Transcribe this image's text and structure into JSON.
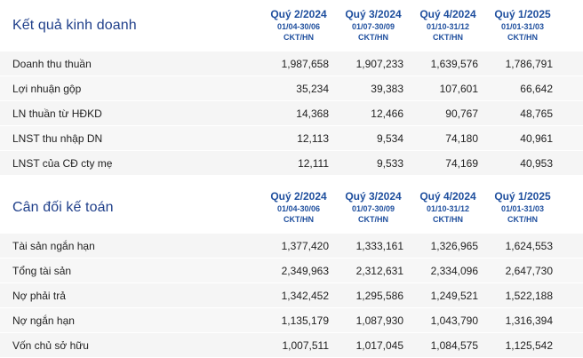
{
  "sections": [
    {
      "title": "Kết quả kinh doanh",
      "columns": [
        {
          "quarter": "Quý 2/2024",
          "range": "01/04-30/06",
          "unit": "CKT/HN"
        },
        {
          "quarter": "Quý 3/2024",
          "range": "01/07-30/09",
          "unit": "CKT/HN"
        },
        {
          "quarter": "Quý 4/2024",
          "range": "01/10-31/12",
          "unit": "CKT/HN"
        },
        {
          "quarter": "Quý 1/2025",
          "range": "01/01-31/03",
          "unit": "CKT/HN"
        }
      ],
      "rows": [
        {
          "label": "Doanh thu thuần",
          "values": [
            "1,987,658",
            "1,907,233",
            "1,639,576",
            "1,786,791"
          ]
        },
        {
          "label": "Lợi nhuận gộp",
          "values": [
            "35,234",
            "39,383",
            "107,601",
            "66,642"
          ]
        },
        {
          "label": "LN thuần từ HĐKD",
          "values": [
            "14,368",
            "12,466",
            "90,767",
            "48,765"
          ]
        },
        {
          "label": "LNST thu nhập DN",
          "values": [
            "12,113",
            "9,534",
            "74,180",
            "40,961"
          ]
        },
        {
          "label": "LNST của CĐ cty mẹ",
          "values": [
            "12,111",
            "9,533",
            "74,169",
            "40,953"
          ]
        }
      ]
    },
    {
      "title": "Cân đối kế toán",
      "columns": [
        {
          "quarter": "Quý 2/2024",
          "range": "01/04-30/06",
          "unit": "CKT/HN"
        },
        {
          "quarter": "Quý 3/2024",
          "range": "01/07-30/09",
          "unit": "CKT/HN"
        },
        {
          "quarter": "Quý 4/2024",
          "range": "01/10-31/12",
          "unit": "CKT/HN"
        },
        {
          "quarter": "Quý 1/2025",
          "range": "01/01-31/03",
          "unit": "CKT/HN"
        }
      ],
      "rows": [
        {
          "label": "Tài sản ngắn hạn",
          "values": [
            "1,377,420",
            "1,333,161",
            "1,326,965",
            "1,624,553"
          ]
        },
        {
          "label": "Tổng tài sản",
          "values": [
            "2,349,963",
            "2,312,631",
            "2,334,096",
            "2,647,730"
          ]
        },
        {
          "label": "Nợ phải trả",
          "values": [
            "1,342,452",
            "1,295,586",
            "1,249,521",
            "1,522,188"
          ]
        },
        {
          "label": "Nợ ngắn hạn",
          "values": [
            "1,135,179",
            "1,087,930",
            "1,043,790",
            "1,316,394"
          ]
        },
        {
          "label": "Vốn chủ sở hữu",
          "values": [
            "1,007,511",
            "1,017,045",
            "1,084,575",
            "1,125,542"
          ]
        }
      ]
    }
  ]
}
